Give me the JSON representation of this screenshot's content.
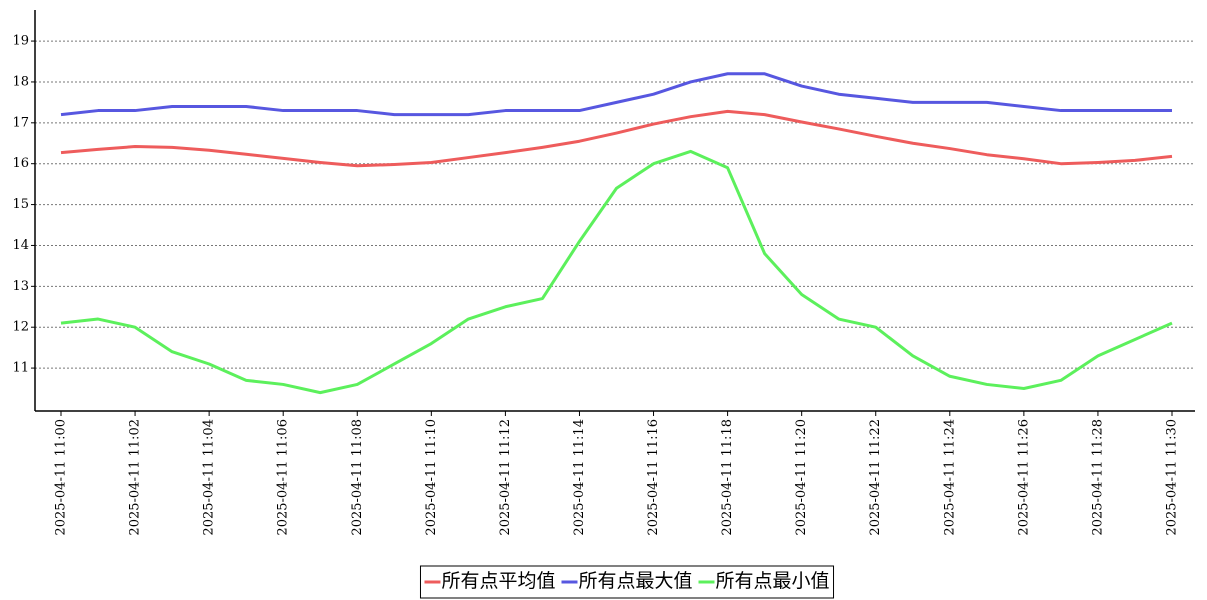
{
  "chart_data": {
    "type": "line",
    "categories": [
      "2025-04-11  11:00",
      null,
      "2025-04-11  11:02",
      null,
      "2025-04-11  11:04",
      null,
      "2025-04-11  11:06",
      null,
      "2025-04-11  11:08",
      null,
      "2025-04-11  11:10",
      null,
      "2025-04-11  11:12",
      null,
      "2025-04-11  11:14",
      null,
      "2025-04-11  11:16",
      null,
      "2025-04-11  11:18",
      null,
      "2025-04-11  11:20",
      null,
      "2025-04-11  11:22",
      null,
      "2025-04-11  11:24",
      null,
      "2025-04-11  11:26",
      null,
      "2025-04-11  11:28",
      null,
      "2025-04-11  11:30"
    ],
    "series": [
      {
        "name": "所有点平均值",
        "color": "#ee5c5c",
        "values": [
          16.27,
          16.35,
          16.42,
          16.4,
          16.33,
          16.23,
          16.13,
          16.03,
          15.95,
          15.98,
          16.03,
          16.15,
          16.27,
          16.4,
          16.55,
          16.75,
          16.97,
          17.15,
          17.28,
          17.2,
          17.02,
          16.85,
          16.67,
          16.5,
          16.37,
          16.22,
          16.12,
          16.0,
          16.03,
          16.08,
          16.18
        ]
      },
      {
        "name": "所有点最大值",
        "color": "#5757e0",
        "values": [
          17.2,
          17.3,
          17.3,
          17.4,
          17.4,
          17.4,
          17.3,
          17.3,
          17.3,
          17.2,
          17.2,
          17.2,
          17.3,
          17.3,
          17.3,
          17.5,
          17.7,
          18.0,
          18.2,
          18.2,
          17.9,
          17.7,
          17.6,
          17.5,
          17.5,
          17.5,
          17.4,
          17.3,
          17.3,
          17.3,
          17.3
        ]
      },
      {
        "name": "所有点最小值",
        "color": "#5cf05c",
        "values": [
          12.1,
          12.2,
          12.0,
          11.4,
          11.1,
          10.7,
          10.6,
          10.4,
          10.6,
          11.1,
          11.6,
          12.2,
          12.5,
          12.7,
          14.1,
          15.4,
          16.0,
          16.3,
          15.9,
          13.8,
          12.8,
          12.2,
          12.0,
          11.3,
          10.8,
          10.6,
          10.5,
          10.7,
          11.3,
          11.7,
          12.1
        ]
      }
    ],
    "ylim": [
      9.95,
      19.76
    ],
    "yticks": [
      11,
      12,
      13,
      14,
      15,
      16,
      17,
      18,
      19
    ],
    "grid": true,
    "legend": "bottom"
  }
}
